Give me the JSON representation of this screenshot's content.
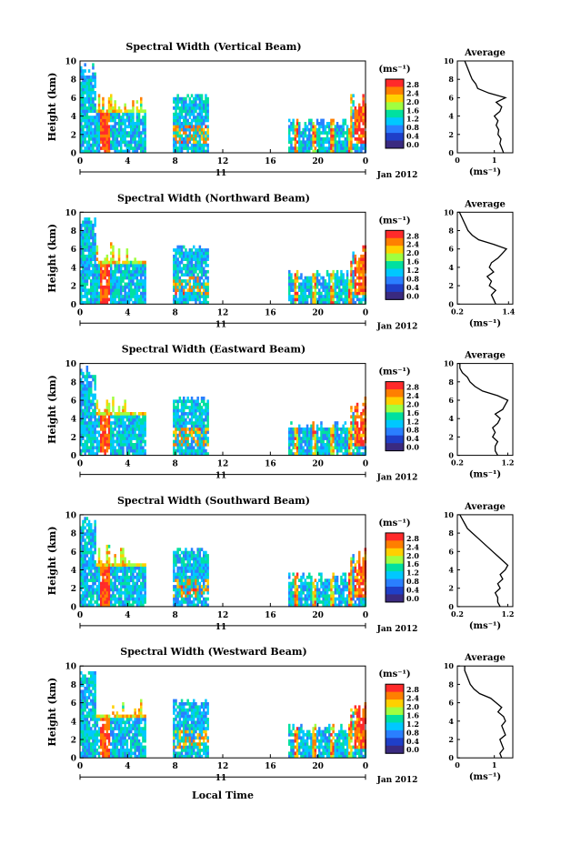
{
  "figure": {
    "time_axis_label": "Local Time",
    "date_label": "Jan 2012",
    "day_label": "11",
    "height_axis_label": "Height (km)",
    "unit_label": "(ms⁻¹)",
    "average_title": "Average",
    "average_unit_label": "(ms⁻¹)"
  },
  "colorbar": {
    "ticks": [
      "2.8",
      "2.4",
      "2.0",
      "1.6",
      "1.2",
      "0.8",
      "0.4",
      "0.0"
    ],
    "colors": [
      "#ff2a2a",
      "#ff7f00",
      "#ffd000",
      "#a0ff40",
      "#00e0a0",
      "#00c8ff",
      "#2a7fff",
      "#1f3fc8",
      "#3a2a80"
    ]
  },
  "chart_data": [
    {
      "type": "heatmap",
      "title": "Spectral Width (Vertical Beam)",
      "xlabel": "Local Time",
      "ylabel": "Height (km)",
      "x_ticks": [
        "0",
        "4",
        "8",
        "12",
        "16",
        "20",
        "0"
      ],
      "xlim": [
        0,
        24
      ],
      "y_ticks": [
        "0",
        "2",
        "4",
        "6",
        "8",
        "10"
      ],
      "ylim": [
        0,
        10
      ],
      "data_blocks_hours": [
        [
          0,
          5.5
        ],
        [
          7.8,
          10.7
        ],
        [
          17.5,
          24
        ]
      ],
      "average_profile": {
        "xlabel": "(ms⁻¹)",
        "x_ticks": [
          "0",
          "1"
        ],
        "xlim": [
          0,
          1.5
        ],
        "heights": [
          0,
          0.5,
          1,
          1.5,
          2,
          2.5,
          3,
          3.5,
          4,
          4.5,
          5,
          5.5,
          6,
          6.5,
          7,
          7.5,
          8,
          8.5,
          9,
          9.5,
          10
        ],
        "values": [
          1.25,
          1.2,
          1.15,
          1.18,
          1.1,
          1.12,
          1.05,
          1.1,
          1.0,
          1.15,
          1.2,
          1.05,
          1.3,
          0.85,
          0.55,
          0.5,
          0.4,
          0.35,
          0.3,
          0.25,
          0.2
        ]
      }
    },
    {
      "type": "heatmap",
      "title": "Spectral Width (Northward Beam)",
      "xlabel": "Local Time",
      "ylabel": "Height (km)",
      "x_ticks": [
        "0",
        "4",
        "8",
        "12",
        "16",
        "20",
        "0"
      ],
      "xlim": [
        0,
        24
      ],
      "y_ticks": [
        "0",
        "2",
        "4",
        "6",
        "8",
        "10"
      ],
      "ylim": [
        0,
        10
      ],
      "data_blocks_hours": [
        [
          0,
          5.5
        ],
        [
          7.8,
          10.7
        ],
        [
          17.5,
          24
        ]
      ],
      "average_profile": {
        "xlabel": "(ms⁻¹)",
        "x_ticks": [
          "0.2",
          "1.4"
        ],
        "xlim": [
          0.2,
          1.5
        ],
        "heights": [
          0,
          0.5,
          1,
          1.5,
          2,
          2.5,
          3,
          3.5,
          4,
          4.5,
          5,
          5.5,
          6,
          6.5,
          7,
          7.5,
          8,
          8.5,
          9,
          9.5,
          10
        ],
        "values": [
          1.1,
          1.05,
          1.0,
          1.1,
          0.95,
          1.0,
          0.9,
          1.05,
          0.95,
          1.0,
          1.15,
          1.25,
          1.35,
          1.05,
          0.7,
          0.55,
          0.45,
          0.4,
          0.35,
          0.3,
          0.25
        ]
      }
    },
    {
      "type": "heatmap",
      "title": "Spectral Width (Eastward Beam)",
      "xlabel": "Local Time",
      "ylabel": "Height (km)",
      "x_ticks": [
        "0",
        "4",
        "8",
        "12",
        "16",
        "20",
        "0"
      ],
      "xlim": [
        0,
        24
      ],
      "y_ticks": [
        "0",
        "2",
        "4",
        "6",
        "8",
        "10"
      ],
      "ylim": [
        0,
        10
      ],
      "data_blocks_hours": [
        [
          0,
          5.5
        ],
        [
          7.8,
          10.7
        ],
        [
          17.5,
          24
        ]
      ],
      "average_profile": {
        "xlabel": "(ms⁻¹)",
        "x_ticks": [
          "0.2",
          "1.2"
        ],
        "xlim": [
          0.2,
          1.3
        ],
        "heights": [
          0,
          0.5,
          1,
          1.5,
          2,
          2.5,
          3,
          3.5,
          4,
          4.5,
          5,
          5.5,
          6,
          6.5,
          7,
          7.5,
          8,
          8.5,
          9,
          9.5,
          10
        ],
        "values": [
          1.0,
          0.95,
          0.95,
          1.0,
          0.9,
          0.95,
          0.9,
          1.0,
          1.05,
          0.95,
          1.1,
          1.15,
          1.2,
          1.0,
          0.7,
          0.55,
          0.45,
          0.4,
          0.3,
          0.25,
          0.25
        ]
      }
    },
    {
      "type": "heatmap",
      "title": "Spectral Width (Southward Beam)",
      "xlabel": "Local Time",
      "ylabel": "Height (km)",
      "x_ticks": [
        "0",
        "4",
        "8",
        "12",
        "16",
        "20",
        "0"
      ],
      "xlim": [
        0,
        24
      ],
      "y_ticks": [
        "0",
        "2",
        "4",
        "6",
        "8",
        "10"
      ],
      "ylim": [
        0,
        10
      ],
      "data_blocks_hours": [
        [
          0,
          5.5
        ],
        [
          7.8,
          10.7
        ],
        [
          17.5,
          24
        ]
      ],
      "average_profile": {
        "xlabel": "(ms⁻¹)",
        "x_ticks": [
          "0.2",
          "1.2"
        ],
        "xlim": [
          0.2,
          1.3
        ],
        "heights": [
          0,
          0.5,
          1,
          1.5,
          2,
          2.5,
          3,
          3.5,
          4,
          4.5,
          5,
          5.5,
          6,
          6.5,
          7,
          7.5,
          8,
          8.5,
          9,
          9.5,
          10
        ],
        "values": [
          1.05,
          1.0,
          1.0,
          0.95,
          1.05,
          1.0,
          1.1,
          1.05,
          1.15,
          1.2,
          1.1,
          1.0,
          0.9,
          0.8,
          0.7,
          0.6,
          0.5,
          0.4,
          0.35,
          0.3,
          0.25
        ]
      }
    },
    {
      "type": "heatmap",
      "title": "Spectral Width (Westward Beam)",
      "xlabel": "Local Time",
      "ylabel": "Height (km)",
      "x_ticks": [
        "0",
        "4",
        "8",
        "12",
        "16",
        "20",
        "0"
      ],
      "xlim": [
        0,
        24
      ],
      "y_ticks": [
        "0",
        "2",
        "4",
        "6",
        "8",
        "10"
      ],
      "ylim": [
        0,
        10
      ],
      "data_blocks_hours": [
        [
          0,
          5.5
        ],
        [
          7.8,
          10.7
        ],
        [
          17.5,
          24
        ]
      ],
      "average_profile": {
        "xlabel": "(ms⁻¹)",
        "x_ticks": [
          "0",
          "1"
        ],
        "xlim": [
          0,
          1.5
        ],
        "heights": [
          0,
          0.5,
          1,
          1.5,
          2,
          2.5,
          3,
          3.5,
          4,
          4.5,
          5,
          5.5,
          6,
          6.5,
          7,
          7.5,
          8,
          8.5,
          9,
          9.5,
          10
        ],
        "values": [
          1.2,
          1.15,
          1.25,
          1.2,
          1.15,
          1.3,
          1.25,
          1.2,
          1.3,
          1.25,
          1.1,
          1.2,
          1.05,
          0.9,
          0.6,
          0.45,
          0.35,
          0.3,
          0.25,
          0.2,
          0.2
        ]
      }
    }
  ]
}
